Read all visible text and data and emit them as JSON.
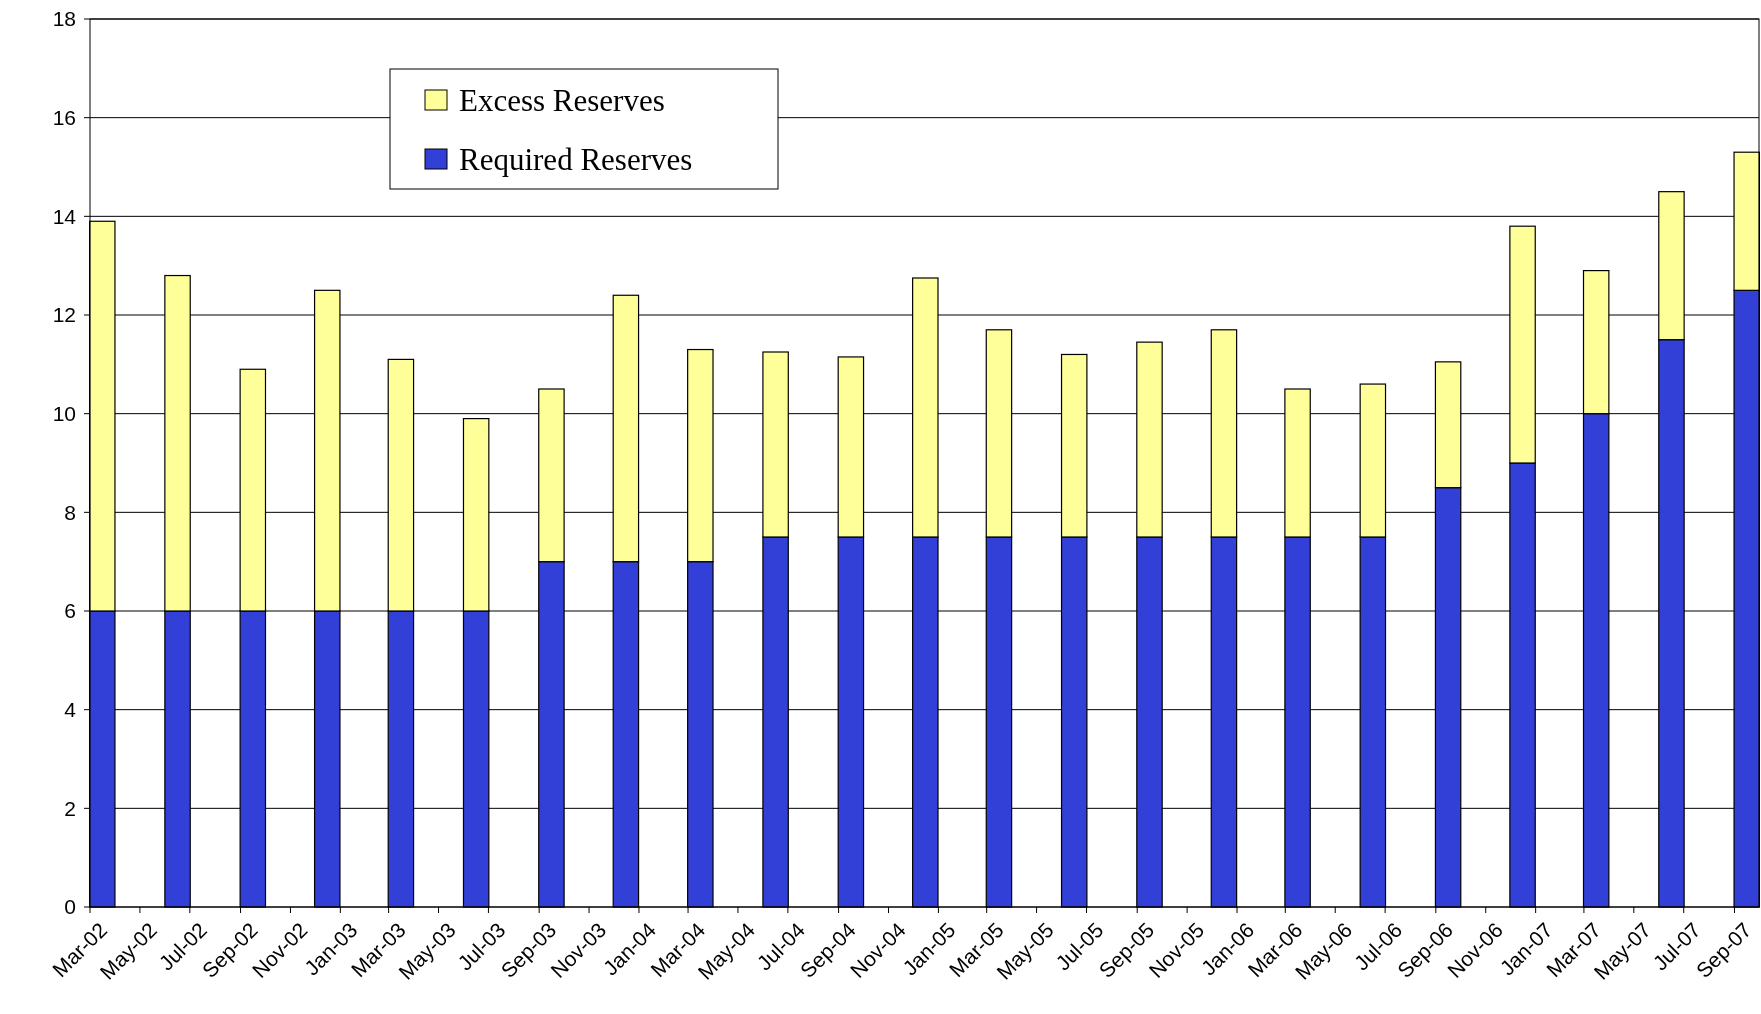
{
  "chart_data": {
    "type": "bar",
    "stacked": true,
    "x": [
      "2002-03-16",
      "2002-06-16",
      "2002-09-16",
      "2002-12-16",
      "2003-03-16",
      "2003-06-16",
      "2003-09-16",
      "2003-12-16",
      "2004-03-16",
      "2004-06-16",
      "2004-09-16",
      "2004-12-16",
      "2005-03-16",
      "2005-06-16",
      "2005-09-16",
      "2005-12-16",
      "2006-03-16",
      "2006-06-16",
      "2006-09-16",
      "2006-12-16",
      "2007-03-16",
      "2007-06-16",
      "2007-09-16"
    ],
    "series": [
      {
        "name": "Required Reserves",
        "color": "#3340d8",
        "values": [
          6,
          6,
          6,
          6,
          6,
          6,
          7,
          7,
          7,
          7.5,
          7.5,
          7.5,
          7.5,
          7.5,
          7.5,
          7.5,
          7.5,
          7.5,
          8.5,
          9,
          10,
          11.5,
          12.5
        ]
      },
      {
        "name": "Excess Reserves",
        "color": "#ffff99",
        "values": [
          7.9,
          6.8,
          4.9,
          6.5,
          5.1,
          3.9,
          3.5,
          5.4,
          4.3,
          3.75,
          3.65,
          5.25,
          4.2,
          3.7,
          3.95,
          4.2,
          3.0,
          3.1,
          2.55,
          4.8,
          2.9,
          3.0,
          2.8
        ]
      }
    ],
    "xlim": [
      "2002-03",
      "2007-10"
    ],
    "xticks": [
      {
        "value": "2002-03",
        "label": "Mar-02"
      },
      {
        "value": "2002-05",
        "label": "May-02"
      },
      {
        "value": "2002-07",
        "label": "Jul-02"
      },
      {
        "value": "2002-09",
        "label": "Sep-02"
      },
      {
        "value": "2002-11",
        "label": "Nov-02"
      },
      {
        "value": "2003-01",
        "label": "Jan-03"
      },
      {
        "value": "2003-03",
        "label": "Mar-03"
      },
      {
        "value": "2003-05",
        "label": "May-03"
      },
      {
        "value": "2003-07",
        "label": "Jul-03"
      },
      {
        "value": "2003-09",
        "label": "Sep-03"
      },
      {
        "value": "2003-11",
        "label": "Nov-03"
      },
      {
        "value": "2004-01",
        "label": "Jan-04"
      },
      {
        "value": "2004-03",
        "label": "Mar-04"
      },
      {
        "value": "2004-05",
        "label": "May-04"
      },
      {
        "value": "2004-07",
        "label": "Jul-04"
      },
      {
        "value": "2004-09",
        "label": "Sep-04"
      },
      {
        "value": "2004-11",
        "label": "Nov-04"
      },
      {
        "value": "2005-01",
        "label": "Jan-05"
      },
      {
        "value": "2005-03",
        "label": "Mar-05"
      },
      {
        "value": "2005-05",
        "label": "May-05"
      },
      {
        "value": "2005-07",
        "label": "Jul-05"
      },
      {
        "value": "2005-09",
        "label": "Sep-05"
      },
      {
        "value": "2005-11",
        "label": "Nov-05"
      },
      {
        "value": "2006-01",
        "label": "Jan-06"
      },
      {
        "value": "2006-03",
        "label": "Mar-06"
      },
      {
        "value": "2006-05",
        "label": "May-06"
      },
      {
        "value": "2006-07",
        "label": "Jul-06"
      },
      {
        "value": "2006-09",
        "label": "Sep-06"
      },
      {
        "value": "2006-11",
        "label": "Nov-06"
      },
      {
        "value": "2007-01",
        "label": "Jan-07"
      },
      {
        "value": "2007-03",
        "label": "Mar-07"
      },
      {
        "value": "2007-05",
        "label": "May-07"
      },
      {
        "value": "2007-07",
        "label": "Jul-07"
      },
      {
        "value": "2007-09",
        "label": "Sep-07"
      }
    ],
    "ylim": [
      0,
      18
    ],
    "yticks": [
      0,
      2,
      4,
      6,
      8,
      10,
      12,
      14,
      16,
      18
    ],
    "grid": "y",
    "legend": "top left"
  }
}
